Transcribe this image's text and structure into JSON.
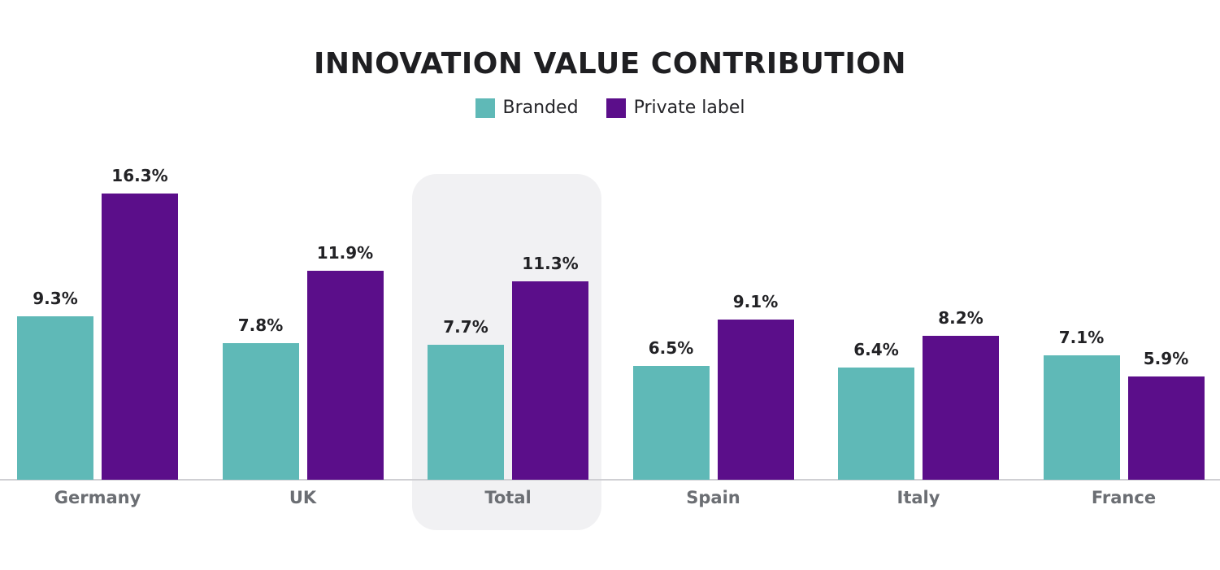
{
  "chart_data": {
    "type": "bar",
    "title": "INNOVATION VALUE CONTRIBUTION",
    "categories": [
      "Germany",
      "UK",
      "Total",
      "Spain",
      "Italy",
      "France"
    ],
    "series": [
      {
        "name": "Branded",
        "color": "#5fb9b7",
        "values": [
          9.3,
          7.8,
          7.7,
          6.5,
          6.4,
          7.1
        ],
        "labels": [
          "9.3%",
          "7.8%",
          "7.7%",
          "6.5%",
          "6.4%",
          "7.1%"
        ]
      },
      {
        "name": "Private label",
        "color": "#5b0e8a",
        "values": [
          16.3,
          11.9,
          11.3,
          9.1,
          8.2,
          5.9
        ],
        "labels": [
          "16.3%",
          "11.9%",
          "11.3%",
          "9.1%",
          "8.2%",
          "5.9%"
        ]
      }
    ],
    "highlight": "Total",
    "legend": "top-center",
    "grid": false,
    "ylim": [
      0,
      18
    ],
    "xlabel": "",
    "ylabel": ""
  }
}
